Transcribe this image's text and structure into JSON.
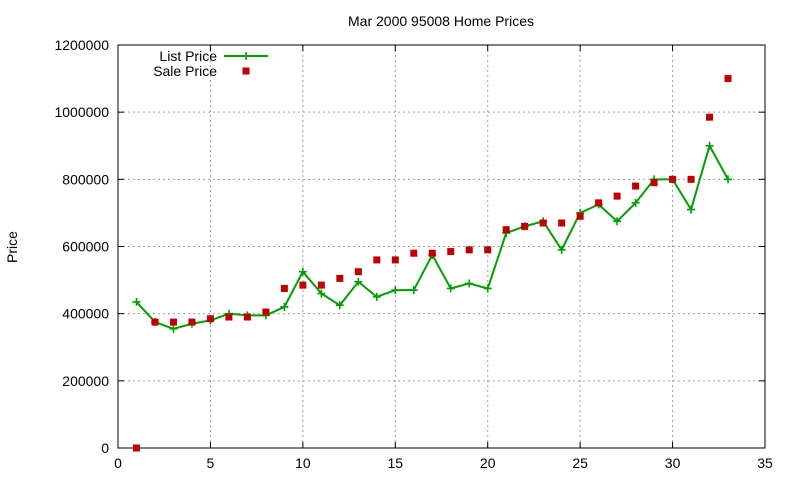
{
  "chart_data": {
    "type": "line",
    "title": "Mar 2000 95008 Home Prices",
    "xlabel": "",
    "ylabel": "Price",
    "xlim": [
      0,
      35
    ],
    "ylim": [
      0,
      1200000
    ],
    "xticks": [
      0,
      5,
      10,
      15,
      20,
      25,
      30,
      35
    ],
    "yticks": [
      0,
      200000,
      400000,
      600000,
      800000,
      1000000,
      1200000
    ],
    "x_tick_labels": [
      "0",
      "5",
      "10",
      "15",
      "20",
      "25",
      "30",
      "35"
    ],
    "y_tick_labels": [
      "0",
      "200000",
      "400000",
      "600000",
      "800000",
      "1000000",
      "1200000"
    ],
    "grid": true,
    "legend_position": "top-left",
    "series": [
      {
        "name": "List Price",
        "style": "linespoints",
        "marker": "plus",
        "color": "#00a000",
        "x": [
          1,
          2,
          3,
          4,
          5,
          6,
          7,
          8,
          9,
          10,
          11,
          12,
          13,
          14,
          15,
          16,
          17,
          18,
          19,
          20,
          21,
          22,
          23,
          24,
          25,
          26,
          27,
          28,
          29,
          30,
          31,
          32,
          33
        ],
        "values": [
          435000,
          375000,
          355000,
          370000,
          380000,
          400000,
          395000,
          395000,
          420000,
          525000,
          460000,
          425000,
          495000,
          450000,
          470000,
          470000,
          575000,
          475000,
          490000,
          475000,
          640000,
          660000,
          675000,
          590000,
          700000,
          725000,
          675000,
          730000,
          800000,
          800000,
          710000,
          900000,
          800000
        ]
      },
      {
        "name": "Sale Price",
        "style": "points",
        "marker": "square",
        "color": "#c00000",
        "x": [
          1,
          2,
          3,
          4,
          5,
          6,
          7,
          8,
          9,
          10,
          11,
          12,
          13,
          14,
          15,
          16,
          17,
          18,
          19,
          20,
          21,
          22,
          23,
          24,
          25,
          26,
          27,
          28,
          29,
          30,
          31,
          32,
          33
        ],
        "values": [
          0,
          375000,
          375000,
          375000,
          385000,
          390000,
          390000,
          405000,
          475000,
          485000,
          485000,
          505000,
          525000,
          560000,
          560000,
          580000,
          580000,
          585000,
          590000,
          590000,
          650000,
          660000,
          670000,
          670000,
          690000,
          730000,
          750000,
          780000,
          790000,
          800000,
          800000,
          985000,
          1100000
        ]
      }
    ]
  }
}
